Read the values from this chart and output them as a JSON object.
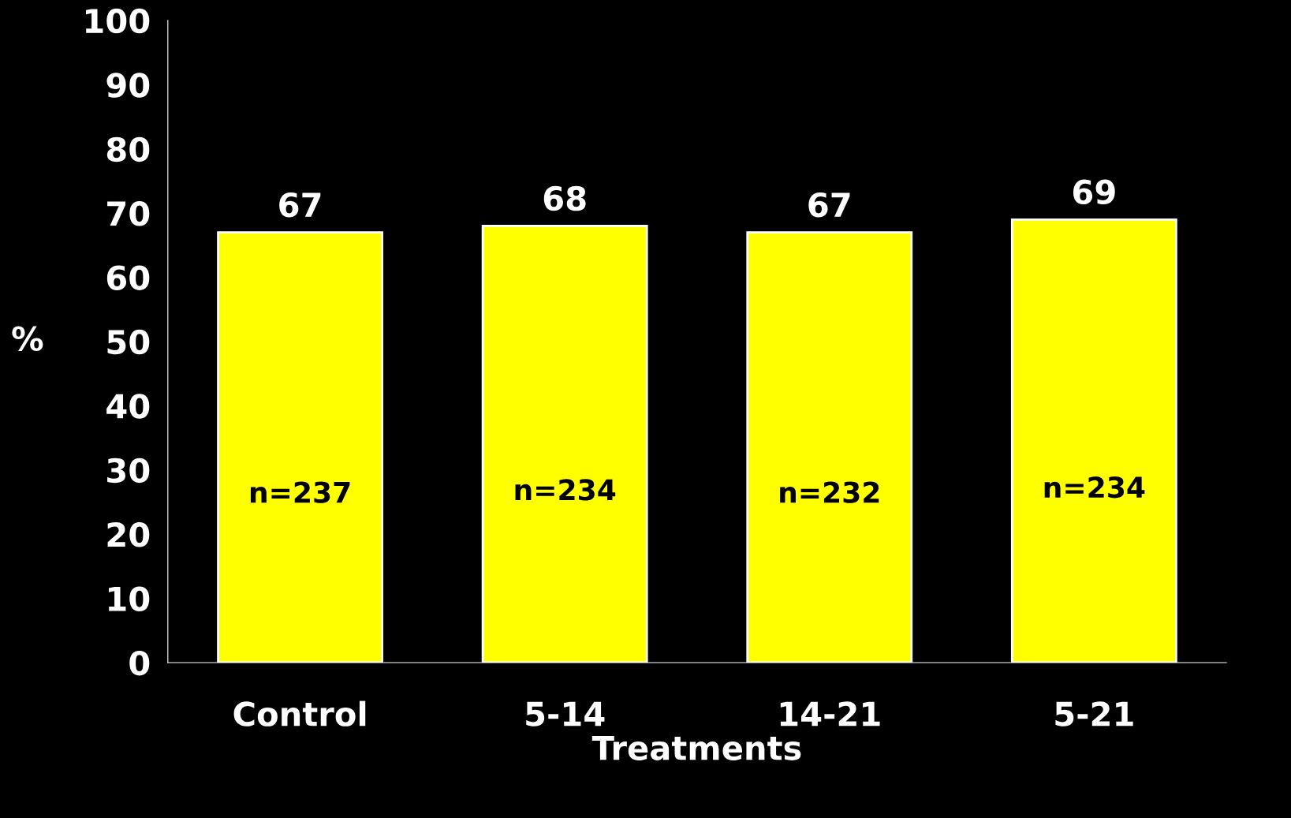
{
  "chart_data": {
    "type": "bar",
    "xlabel": "Treatments",
    "ylabel": "%",
    "categories": [
      "Control",
      "5-14",
      "14-21",
      "5-21"
    ],
    "values": [
      67,
      68,
      67,
      69
    ],
    "color": "#ffff00",
    "ylim": [
      0,
      100
    ],
    "yticks": [
      0,
      10,
      20,
      30,
      40,
      50,
      60,
      70,
      80,
      90,
      100
    ],
    "data_labels": true,
    "grid": false,
    "annotations": [
      "n=237",
      "n=234",
      "n=232",
      "n=234"
    ]
  }
}
